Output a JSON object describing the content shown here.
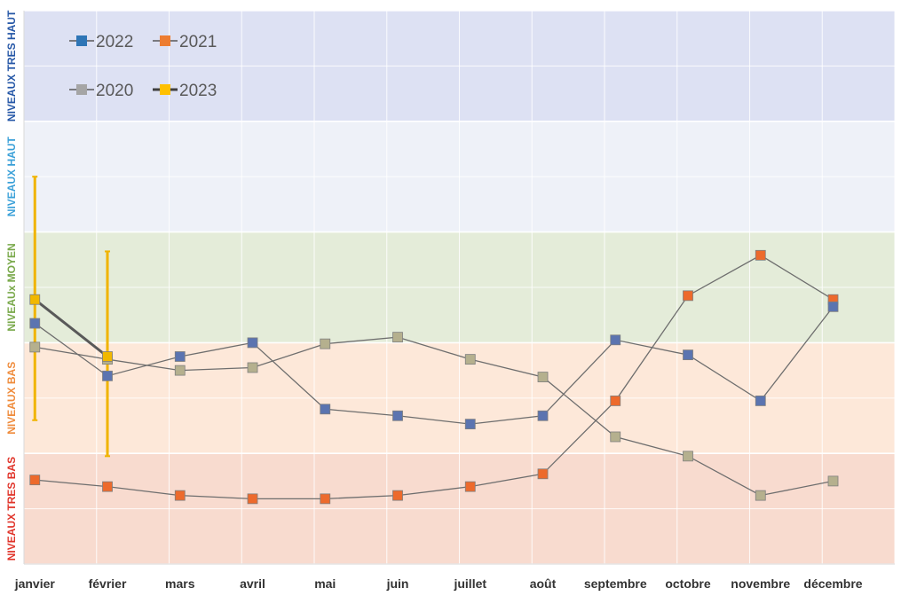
{
  "chart_data": {
    "type": "line",
    "title": "",
    "xlabel": "",
    "ylabel": "",
    "grid": true,
    "legend_position": "top-left",
    "categories": [
      "janvier",
      "février",
      "mars",
      "avril",
      "mai",
      "juin",
      "juillet",
      "août",
      "septembre",
      "octobre",
      "novembre",
      "décembre"
    ],
    "ylim": [
      0,
      10
    ],
    "bands": [
      {
        "label": "NIVEAUX TRES BAS",
        "from": 0,
        "to": 2,
        "fill": "#f8dbcf",
        "text_color": "#e0342a"
      },
      {
        "label": "NIVEAUX BAS",
        "from": 2,
        "to": 4,
        "fill": "#fde8d9",
        "text_color": "#ef8b3b"
      },
      {
        "label": "NIVEAUx MOYEN",
        "from": 4,
        "to": 6,
        "fill": "#e4ecd9",
        "text_color": "#78a849"
      },
      {
        "label": "NIVEAUX HAUT",
        "from": 6,
        "to": 8,
        "fill": "#eef1f8",
        "text_color": "#3aa0d8"
      },
      {
        "label": "NIVEAUX TRES HAUT",
        "from": 8,
        "to": 10,
        "fill": "#dde1f3",
        "text_color": "#2456a6"
      }
    ],
    "series": [
      {
        "name": "2022",
        "legend_color": "#2e75b6",
        "marker_color": "#5b74b0",
        "line_color": "#6e6e6e",
        "values": [
          4.35,
          3.4,
          3.75,
          4.0,
          2.8,
          2.68,
          2.53,
          2.68,
          4.05,
          3.78,
          2.95,
          4.65
        ]
      },
      {
        "name": "2021",
        "legend_color": "#ed7d31",
        "marker_color": "#ed6a2c",
        "line_color": "#6e6e6e",
        "values": [
          1.52,
          1.4,
          1.24,
          1.18,
          1.18,
          1.24,
          1.4,
          1.63,
          2.95,
          4.85,
          5.58,
          4.78
        ]
      },
      {
        "name": "2020",
        "legend_color": "#a5a5a5",
        "marker_color": "#b5b08e",
        "line_color": "#6e6e6e",
        "values": [
          3.92,
          3.7,
          3.5,
          3.55,
          3.98,
          4.1,
          3.7,
          3.38,
          2.3,
          1.95,
          1.24,
          1.5
        ]
      },
      {
        "name": "2023",
        "legend_color": "#ffc000",
        "marker_color": "#f1b800",
        "line_color": "#595959",
        "values": [
          4.78,
          3.75,
          null,
          null,
          null,
          null,
          null,
          null,
          null,
          null,
          null,
          null
        ],
        "error_low": [
          2.6,
          1.95,
          null,
          null,
          null,
          null,
          null,
          null,
          null,
          null,
          null,
          null
        ],
        "error_high": [
          7.0,
          5.65,
          null,
          null,
          null,
          null,
          null,
          null,
          null,
          null,
          null,
          null
        ],
        "error_color": "#f0b400"
      }
    ]
  }
}
